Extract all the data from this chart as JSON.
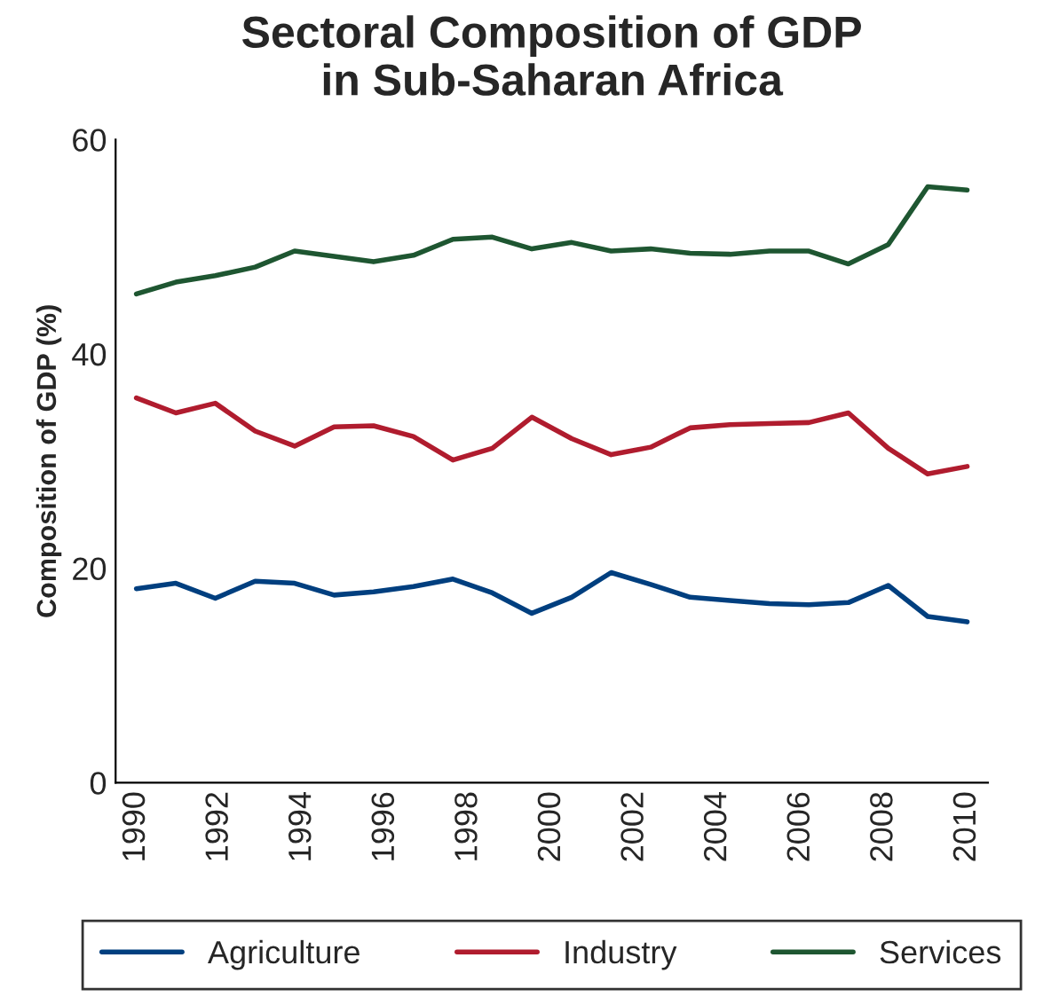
{
  "chart_data": {
    "type": "line",
    "title": "Sectoral Composition of GDP\nin Sub-Saharan Africa",
    "ylabel": "Composition of GDP (%)",
    "x": [
      1990,
      1990.95,
      1991.9,
      1992.86,
      1993.81,
      1994.76,
      1995.71,
      1996.67,
      1997.62,
      1998.57,
      1999.52,
      2000.48,
      2001.43,
      2002.38,
      2003.33,
      2004.29,
      2005.24,
      2006.19,
      2007.14,
      2008.1,
      2009.05,
      2010
    ],
    "series": [
      {
        "name": "Agriculture",
        "color": "#003f7f",
        "values": [
          18.1,
          18.6,
          17.2,
          18.8,
          18.6,
          17.5,
          17.8,
          18.3,
          19.0,
          17.7,
          15.8,
          17.3,
          19.6,
          18.5,
          17.3,
          17.0,
          16.7,
          16.6,
          16.8,
          18.4,
          15.5,
          15.0
        ]
      },
      {
        "name": "Industry",
        "color": "#b01c2e",
        "values": [
          35.9,
          34.5,
          35.4,
          32.8,
          31.4,
          33.2,
          33.3,
          32.3,
          30.1,
          31.2,
          34.1,
          32.1,
          30.6,
          31.3,
          33.1,
          33.4,
          33.5,
          33.6,
          34.5,
          31.2,
          28.8,
          29.5
        ]
      },
      {
        "name": "Services",
        "color": "#1e5631",
        "values": [
          45.6,
          46.7,
          47.3,
          48.1,
          49.6,
          49.1,
          48.6,
          49.2,
          50.7,
          50.9,
          49.8,
          50.4,
          49.6,
          49.8,
          49.4,
          49.3,
          49.6,
          49.6,
          48.4,
          50.2,
          55.6,
          55.3
        ]
      }
    ],
    "xlim": [
      1989.5,
      2010.5
    ],
    "xticks": [
      1990,
      1992,
      1994,
      1996,
      1998,
      2000,
      2002,
      2004,
      2006,
      2008,
      2010
    ],
    "ylim": [
      0,
      60
    ],
    "yticks": [
      0,
      20,
      40,
      60
    ],
    "grid": false,
    "legend": "bottom",
    "marker": "none",
    "line_style": "solid"
  }
}
